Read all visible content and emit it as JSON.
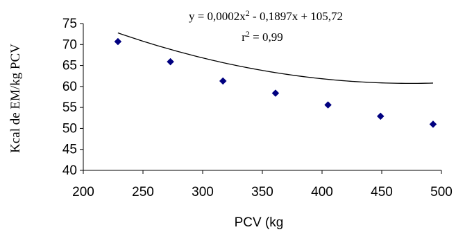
{
  "chart_data": {
    "type": "scatter",
    "xlabel": "PCV (kg",
    "ylabel": "Kcal de EM/kg PCV",
    "xlim": [
      200,
      500
    ],
    "ylim": [
      40,
      75
    ],
    "x_ticks": [
      "200",
      "250",
      "300",
      "350",
      "400",
      "450",
      "500"
    ],
    "y_ticks": [
      "40",
      "45",
      "50",
      "55",
      "60",
      "65",
      "70",
      "75"
    ],
    "points": [
      {
        "x": 229,
        "y": 70.7
      },
      {
        "x": 273,
        "y": 65.9
      },
      {
        "x": 317,
        "y": 61.3
      },
      {
        "x": 361,
        "y": 58.4
      },
      {
        "x": 405,
        "y": 55.6
      },
      {
        "x": 449,
        "y": 52.9
      },
      {
        "x": 493,
        "y": 51.0
      }
    ],
    "trendline": {
      "type": "polynomial",
      "coefficients": [
        0.0002,
        -0.1897,
        105.72
      ],
      "x_range": [
        229,
        493
      ]
    },
    "equation": {
      "prefix": "y = 0,0002x",
      "exp": "2",
      "rest": " - 0,1897x + 105,72"
    },
    "r2": {
      "prefix": "r",
      "exp": "2",
      "rest": " = 0,99"
    },
    "marker_color": "#000080",
    "grid": false,
    "legend": "none"
  }
}
